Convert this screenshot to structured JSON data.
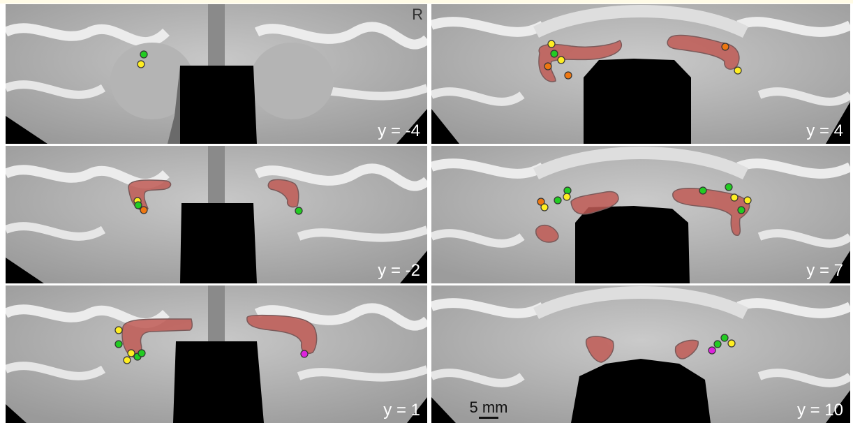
{
  "figure": {
    "orientation_label": "R",
    "scale_bar": {
      "label": "5 mm"
    },
    "colors": {
      "roi_fill": "#c05a55",
      "roi_stroke": "#7a5a5a",
      "dot_green": "#22cc22",
      "dot_yellow": "#ffee22",
      "dot_orange": "#ee7711",
      "dot_magenta": "#dd22dd"
    },
    "panels": [
      {
        "id": "left-top",
        "slice_label": "y = -4"
      },
      {
        "id": "right-top",
        "slice_label": "y = 4"
      },
      {
        "id": "left-middle",
        "slice_label": "y = -2"
      },
      {
        "id": "right-middle",
        "slice_label": "y = 7"
      },
      {
        "id": "left-bottom",
        "slice_label": "y = 1"
      },
      {
        "id": "right-bottom",
        "slice_label": "y = 10"
      }
    ]
  }
}
